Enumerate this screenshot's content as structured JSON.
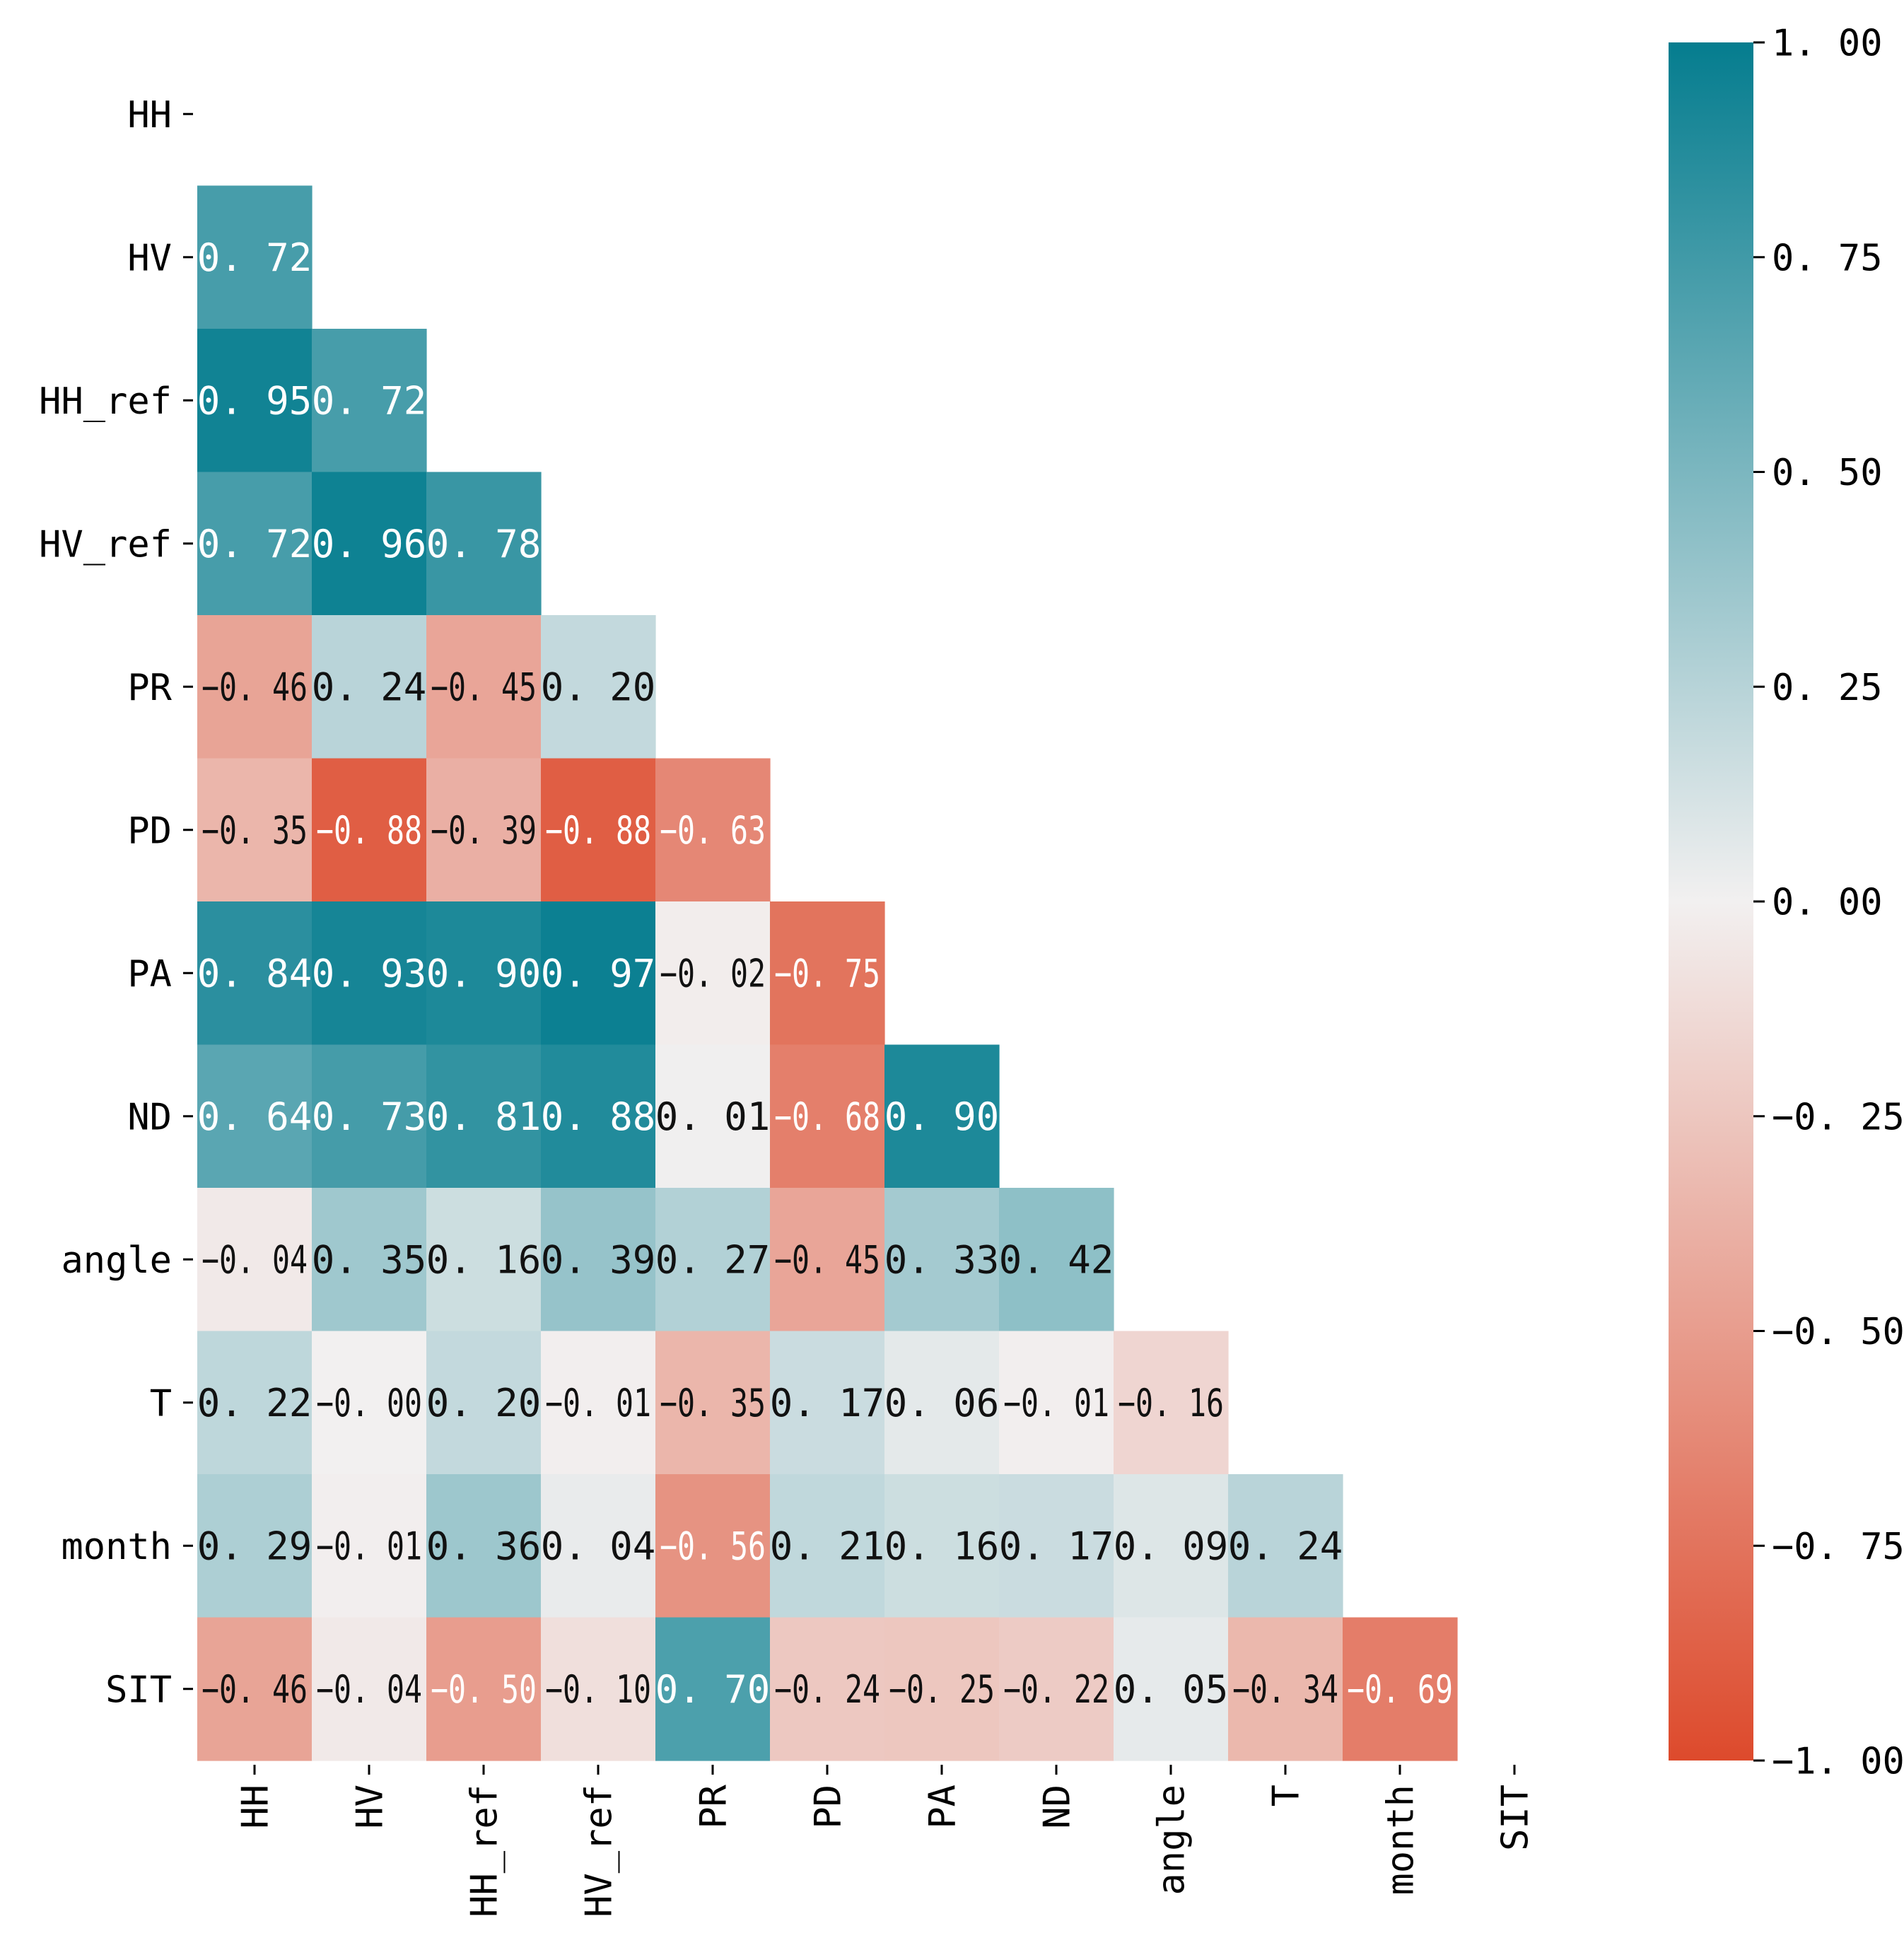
{
  "chart_data": {
    "type": "heatmap",
    "title": "",
    "xlabel": "",
    "ylabel": "",
    "variables": [
      "HH",
      "HV",
      "HH_ref",
      "HV_ref",
      "PR",
      "PD",
      "PA",
      "ND",
      "angle",
      "T",
      "month",
      "SIT"
    ],
    "matrix": [
      [],
      [
        0.72
      ],
      [
        0.95,
        0.72
      ],
      [
        0.72,
        0.96,
        0.78
      ],
      [
        -0.46,
        0.24,
        -0.45,
        0.2
      ],
      [
        -0.35,
        -0.88,
        -0.39,
        -0.88,
        -0.63
      ],
      [
        0.84,
        0.93,
        0.9,
        0.97,
        -0.02,
        -0.75
      ],
      [
        0.64,
        0.73,
        0.81,
        0.88,
        0.01,
        -0.68,
        0.9
      ],
      [
        -0.04,
        0.35,
        0.16,
        0.39,
        0.27,
        -0.45,
        0.33,
        0.42
      ],
      [
        0.22,
        -0.0,
        0.2,
        -0.01,
        -0.35,
        0.17,
        0.06,
        -0.01,
        -0.16
      ],
      [
        0.29,
        -0.01,
        0.36,
        0.04,
        -0.56,
        0.21,
        0.16,
        0.17,
        0.09,
        0.24
      ],
      [
        -0.46,
        -0.04,
        -0.5,
        -0.1,
        0.7,
        -0.24,
        -0.25,
        -0.22,
        0.05,
        -0.34,
        -0.69
      ]
    ],
    "cell_labels": [
      [],
      [
        "0. 72"
      ],
      [
        "0. 95",
        "0. 72"
      ],
      [
        "0. 72",
        "0. 96",
        "0. 78"
      ],
      [
        "−0. 46",
        "0. 24",
        "−0. 45",
        "0. 20"
      ],
      [
        "−0. 35",
        "−0. 88",
        "−0. 39",
        "−0. 88",
        "−0. 63"
      ],
      [
        "0. 84",
        "0. 93",
        "0. 90",
        "0. 97",
        "−0. 02",
        "−0. 75"
      ],
      [
        "0. 64",
        "0. 73",
        "0. 81",
        "0. 88",
        "0. 01",
        "−0. 68",
        "0. 90"
      ],
      [
        "−0. 04",
        "0. 35",
        "0. 16",
        "0. 39",
        "0. 27",
        "−0. 45",
        "0. 33",
        "0. 42"
      ],
      [
        "0. 22",
        "−0. 00",
        "0. 20",
        "−0. 01",
        "−0. 35",
        "0. 17",
        "0. 06",
        "−0. 01",
        "−0. 16"
      ],
      [
        "0. 29",
        "−0. 01",
        "0. 36",
        "0. 04",
        "−0. 56",
        "0. 21",
        "0. 16",
        "0. 17",
        "0. 09",
        "0. 24"
      ],
      [
        "−0. 46",
        "−0. 04",
        "−0. 50",
        "−0. 10",
        "0. 70",
        "−0. 24",
        "−0. 25",
        "−0. 22",
        "0. 05",
        "−0. 34",
        "−0. 69"
      ]
    ],
    "mask": "upper-triangle-including-diagonal",
    "colorbar": {
      "range": [
        -1.0,
        1.0
      ],
      "ticks": [
        1.0,
        0.75,
        0.5,
        0.25,
        0.0,
        -0.25,
        -0.5,
        -0.75,
        -1.0
      ],
      "tick_labels": [
        "1. 00",
        "0. 75",
        "0. 50",
        "0. 25",
        "0. 00",
        "−0. 25",
        "−0. 50",
        "−0. 75",
        "−1. 00"
      ],
      "placement": "right"
    },
    "colors": {
      "negative": "#dd4a2c",
      "neutral": "#f2f0f0",
      "positive": "#057d8f",
      "text_dark": "#111111",
      "text_light": "#ffffff"
    }
  }
}
